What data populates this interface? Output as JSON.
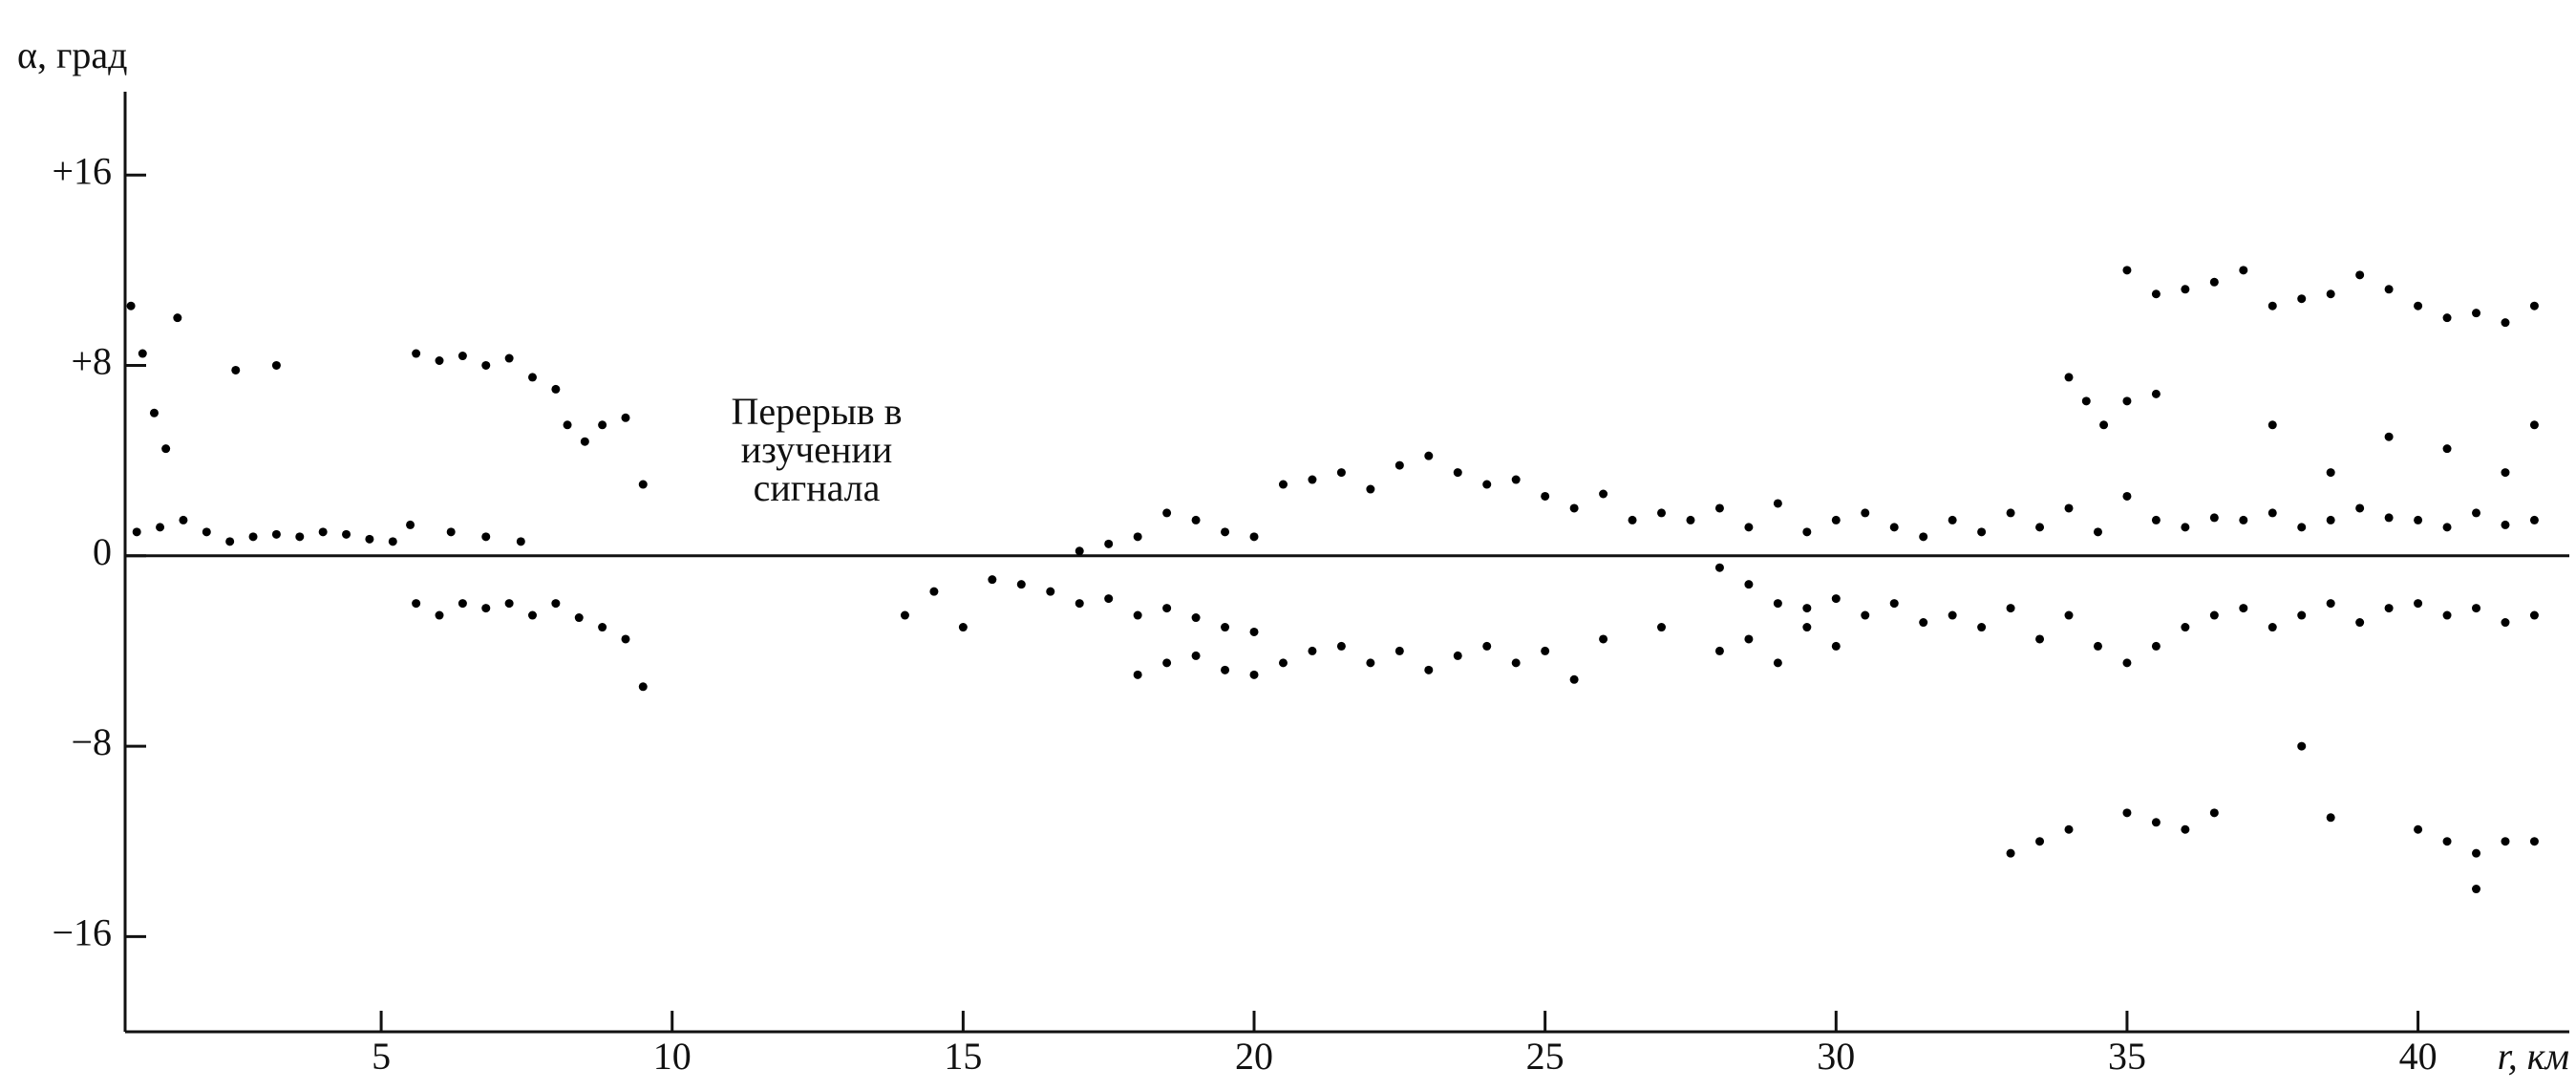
{
  "chart_data": {
    "type": "scatter",
    "y_label": "α, град",
    "x_label": "r, км",
    "annotation": [
      "Перерыв в",
      "изучении",
      "сигнала"
    ],
    "xlim": [
      0.6,
      42.6
    ],
    "ylim": [
      -20,
      19.5
    ],
    "xticks": [
      5,
      10,
      15,
      20,
      25,
      30,
      35,
      40
    ],
    "yticks": [
      {
        "value": -16,
        "label": "−16"
      },
      {
        "value": -8,
        "label": "−8"
      },
      0,
      {
        "value": 8,
        "label": "+8"
      },
      {
        "value": 16,
        "label": "+16"
      }
    ],
    "color": "#000000",
    "x": [
      0.8,
      1.2,
      1.6,
      2.0,
      2.4,
      2.8,
      3.2,
      3.6,
      4.0,
      4.4,
      4.8,
      5.2,
      5.5,
      0.7,
      0.9,
      1.1,
      1.3,
      1.5,
      2.5,
      3.2,
      5.6,
      6.0,
      6.4,
      6.8,
      7.2,
      7.6,
      8.0,
      8.2,
      8.5,
      8.8,
      9.2,
      9.5,
      5.6,
      6.0,
      6.4,
      6.8,
      7.2,
      7.6,
      8.0,
      8.4,
      8.8,
      9.2,
      9.5,
      6.2,
      6.8,
      7.4,
      14.0,
      14.5,
      15.0,
      15.5,
      16.0,
      16.5,
      17.0,
      17.5,
      18.0,
      18.5,
      19.0,
      19.5,
      20.0,
      17.0,
      17.5,
      18.0,
      18.5,
      19.0,
      19.5,
      20.0,
      20.5,
      21.0,
      21.5,
      22.0,
      22.5,
      23.0,
      23.5,
      24.0,
      24.5,
      25.0,
      25.5,
      26.0,
      26.5,
      27.0,
      18.0,
      18.5,
      19.0,
      19.5,
      20.0,
      20.5,
      21.0,
      21.5,
      22.0,
      22.5,
      23.0,
      23.5,
      24.0,
      24.5,
      25.0,
      25.5,
      26.0,
      27.0,
      28.0,
      28.5,
      29.0,
      29.5,
      30.0,
      27.5,
      28.0,
      28.5,
      29.0,
      29.5,
      30.0,
      30.5,
      31.0,
      31.5,
      32.0,
      32.5,
      33.0,
      33.5,
      34.0,
      34.5,
      35.0,
      35.5,
      36.0,
      36.5,
      37.0,
      37.5,
      38.0,
      38.5,
      39.0,
      39.5,
      40.0,
      40.5,
      41.0,
      41.5,
      42.0,
      28.0,
      28.5,
      29.0,
      29.5,
      30.0,
      30.5,
      31.0,
      31.5,
      32.0,
      32.5,
      33.0,
      33.5,
      34.0,
      34.5,
      35.0,
      35.5,
      36.0,
      36.5,
      37.0,
      37.5,
      38.0,
      38.5,
      39.0,
      39.5,
      40.0,
      40.5,
      41.0,
      41.5,
      42.0,
      34.0,
      34.3,
      34.6,
      35.0,
      35.5,
      35.0,
      35.5,
      36.0,
      36.5,
      37.0,
      37.5,
      38.0,
      38.5,
      39.0,
      39.5,
      40.0,
      40.5,
      41.0,
      41.5,
      42.0,
      33.0,
      33.5,
      34.0,
      35.0,
      35.5,
      36.0,
      36.5,
      38.0,
      38.5,
      40.0,
      40.5,
      41.0,
      41.5,
      42.0,
      41.0,
      37.5,
      38.5,
      39.5,
      40.5,
      41.5,
      42.0
    ],
    "values": [
      1,
      1.2,
      1.5,
      1.0,
      0.6,
      0.8,
      0.9,
      0.8,
      1.0,
      0.9,
      0.7,
      0.6,
      1.3,
      10.5,
      8.5,
      6,
      4.5,
      10,
      7.8,
      8,
      8.5,
      8.2,
      8.4,
      8.0,
      8.3,
      7.5,
      7.0,
      5.5,
      4.8,
      5.5,
      5.8,
      3.0,
      -2.0,
      -2.5,
      -2.0,
      -2.2,
      -2.0,
      -2.5,
      -2.0,
      -2.6,
      -3.0,
      -3.5,
      -5.5,
      1.0,
      0.8,
      0.6,
      -2.5,
      -1.5,
      -3.0,
      -1.0,
      -1.2,
      -1.5,
      -2.0,
      -1.8,
      -2.5,
      -2.2,
      -2.6,
      -3.0,
      -3.2,
      0.2,
      0.5,
      0.8,
      1.8,
      1.5,
      1.0,
      0.8,
      3.0,
      3.2,
      3.5,
      2.8,
      3.8,
      4.2,
      3.5,
      3.0,
      3.2,
      2.5,
      2.0,
      2.6,
      1.5,
      1.8,
      -5.0,
      -4.5,
      -4.2,
      -4.8,
      -5.0,
      -4.5,
      -4.0,
      -3.8,
      -4.5,
      -4.0,
      -4.8,
      -4.2,
      -3.8,
      -4.5,
      -4.0,
      -5.2,
      -3.5,
      -3.0,
      -4.0,
      -3.5,
      -4.5,
      -3.0,
      -3.8,
      1.5,
      2.0,
      1.2,
      2.2,
      1.0,
      1.5,
      1.8,
      1.2,
      0.8,
      1.5,
      1.0,
      1.8,
      1.2,
      2.0,
      1.0,
      2.5,
      1.5,
      1.2,
      1.6,
      1.5,
      1.8,
      1.2,
      1.5,
      2.0,
      1.6,
      1.5,
      1.2,
      1.8,
      1.3,
      1.5,
      -0.5,
      -1.2,
      -2.0,
      -2.2,
      -1.8,
      -2.5,
      -2.0,
      -2.8,
      -2.5,
      -3.0,
      -2.2,
      -3.5,
      -2.5,
      -3.8,
      -4.5,
      -3.8,
      -3.0,
      -2.5,
      -2.2,
      -3.0,
      -2.5,
      -2.0,
      -2.8,
      -2.2,
      -2.0,
      -2.5,
      -2.2,
      -2.8,
      -2.5,
      7.5,
      6.5,
      5.5,
      6.5,
      6.8,
      12.0,
      11.0,
      11.2,
      11.5,
      12.0,
      10.5,
      10.8,
      11.0,
      11.8,
      11.2,
      10.5,
      10.0,
      10.2,
      9.8,
      10.5,
      -12.5,
      -12.0,
      -11.5,
      -10.8,
      -11.2,
      -11.5,
      -10.8,
      -8.0,
      -11.0,
      -11.5,
      -12.0,
      -12.5,
      -12.0,
      -12.0,
      -14.0,
      5.5,
      3.5,
      5.0,
      4.5,
      3.5,
      5.5
    ]
  }
}
